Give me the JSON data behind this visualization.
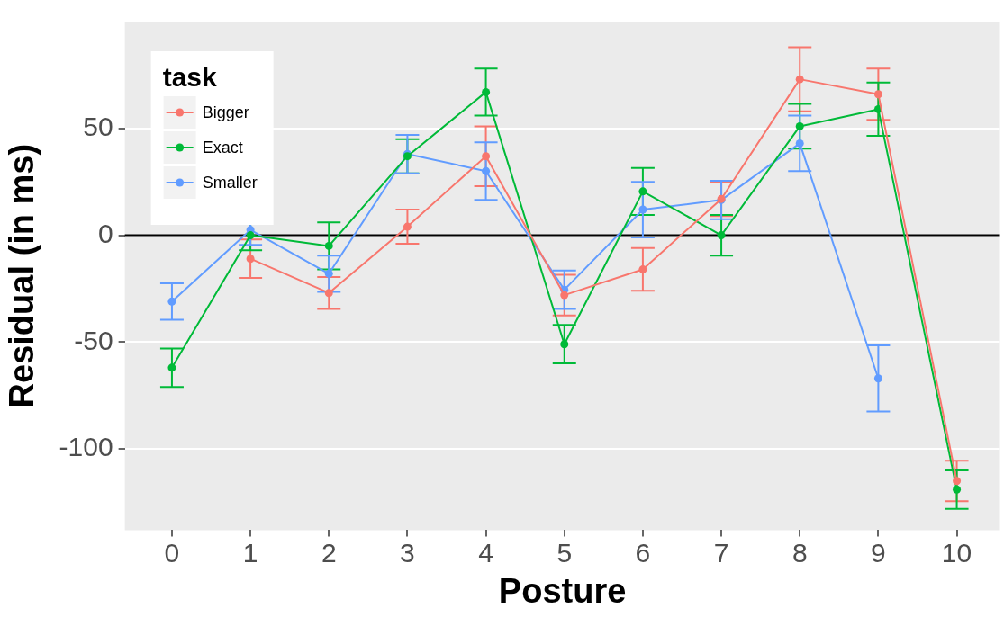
{
  "chart_data": {
    "type": "line",
    "xlabel": "Posture",
    "ylabel": "Residual (in ms)",
    "legend_title": "task",
    "x": [
      0,
      1,
      2,
      3,
      4,
      5,
      6,
      7,
      8,
      9,
      10
    ],
    "xlim": [
      -0.6,
      10.55
    ],
    "xticks": [
      0,
      1,
      2,
      3,
      4,
      5,
      6,
      7,
      8,
      9,
      10
    ],
    "ylim": [
      -138,
      100
    ],
    "yticks": [
      -100,
      -50,
      0,
      50
    ],
    "series": [
      {
        "name": "Bigger",
        "color": "#f8766d",
        "values": [
          null,
          -11,
          -27,
          4,
          37,
          -28,
          -16,
          17,
          73,
          66,
          -115
        ],
        "errors": [
          null,
          9,
          7.5,
          8,
          14,
          9.5,
          10,
          8,
          15,
          12,
          9.5
        ]
      },
      {
        "name": "Exact",
        "color": "#00ba38",
        "values": [
          -62,
          0,
          -5,
          37,
          67,
          -51,
          20.5,
          0,
          51,
          59,
          -119
        ],
        "errors": [
          9,
          7,
          11,
          8,
          11,
          9,
          11,
          9.5,
          10.5,
          12.5,
          9
        ]
      },
      {
        "name": "Smaller",
        "color": "#619cff",
        "values": [
          -31,
          2.5,
          -18,
          38,
          30,
          -25.5,
          12,
          16.5,
          43,
          -67,
          null
        ],
        "errors": [
          8.5,
          7,
          8.5,
          9,
          13.5,
          9,
          13,
          9,
          13,
          15.5,
          null
        ]
      }
    ],
    "ref_lines": [
      {
        "axis": "y",
        "value": 0,
        "color": "#000000"
      }
    ],
    "grid": "y",
    "legend": "top left",
    "marker": "circle",
    "line_style": "solid"
  }
}
